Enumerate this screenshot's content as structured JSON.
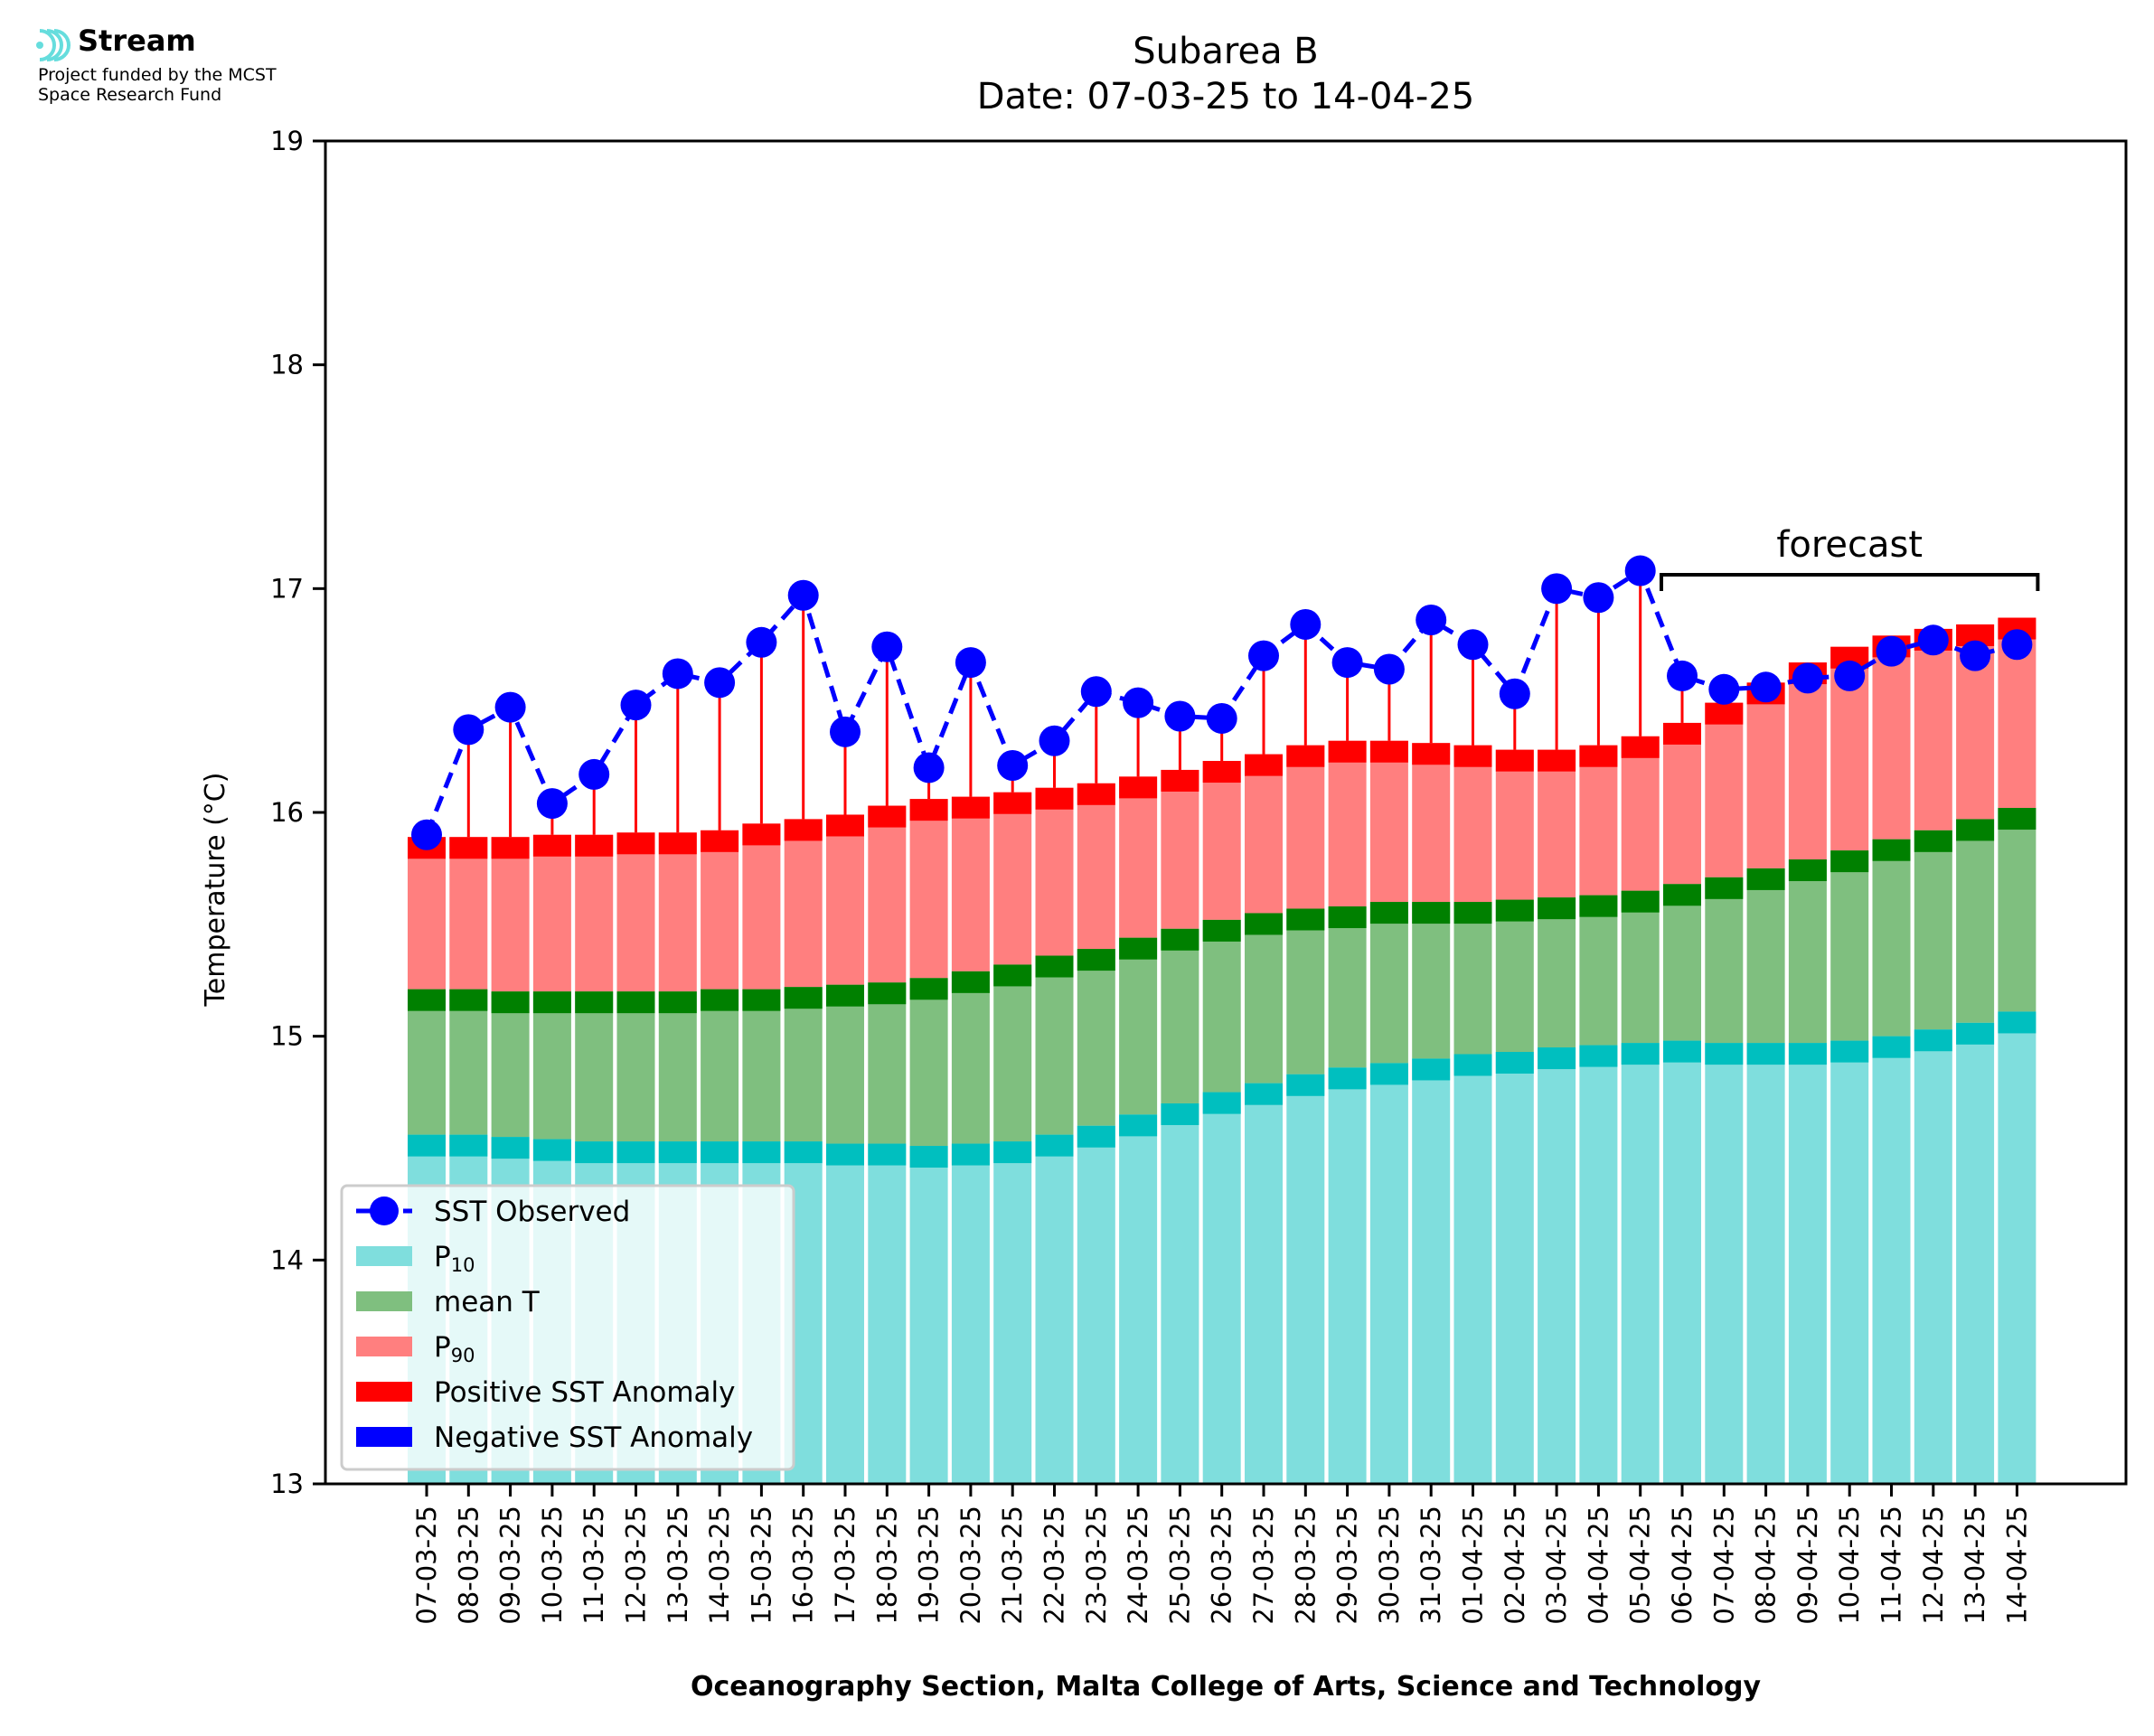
{
  "logo": {
    "name": "Stream",
    "line1": "Project funded by the MCST",
    "line2": "Space Research Fund"
  },
  "chart_data": {
    "type": "bar",
    "title": "Subarea B",
    "subtitle": "Date: 07-03-25 to 14-04-25",
    "xlabel": "Oceanography Section, Malta College of Arts, Science and Technology",
    "ylabel": "Temperature (°C)",
    "ylim": [
      13,
      19
    ],
    "yticks": [
      "13",
      "14",
      "15",
      "16",
      "17",
      "18",
      "19"
    ],
    "annotation": "forecast",
    "forecast_from": "06-04-25",
    "forecast_to": "14-04-25",
    "categories": [
      "07-03-25",
      "08-03-25",
      "09-03-25",
      "10-03-25",
      "11-03-25",
      "12-03-25",
      "13-03-25",
      "14-03-25",
      "15-03-25",
      "16-03-25",
      "17-03-25",
      "18-03-25",
      "19-03-25",
      "20-03-25",
      "21-03-25",
      "22-03-25",
      "23-03-25",
      "24-03-25",
      "25-03-25",
      "26-03-25",
      "27-03-25",
      "28-03-25",
      "29-03-25",
      "30-03-25",
      "31-03-25",
      "01-04-25",
      "02-04-25",
      "03-04-25",
      "04-04-25",
      "05-04-25",
      "06-04-25",
      "07-04-25",
      "08-04-25",
      "09-04-25",
      "10-04-25",
      "11-04-25",
      "12-04-25",
      "13-04-25",
      "14-04-25"
    ],
    "series": [
      {
        "name": "SST Observed",
        "color": "#0000ff",
        "values": [
          15.9,
          16.37,
          16.47,
          16.04,
          16.17,
          16.48,
          16.62,
          16.58,
          16.76,
          16.97,
          16.36,
          16.74,
          16.2,
          16.67,
          16.21,
          16.32,
          16.54,
          16.49,
          16.43,
          16.42,
          16.7,
          16.84,
          16.67,
          16.64,
          16.86,
          16.75,
          16.53,
          17.0,
          16.96,
          17.08,
          16.61,
          16.55,
          16.56,
          16.6,
          16.61,
          16.72,
          16.77,
          16.7,
          16.75
        ]
      },
      {
        "name": "P10",
        "color": "#7fdedd",
        "values": [
          14.56,
          14.56,
          14.55,
          14.54,
          14.53,
          14.53,
          14.53,
          14.53,
          14.53,
          14.53,
          14.52,
          14.52,
          14.51,
          14.52,
          14.53,
          14.56,
          14.6,
          14.65,
          14.7,
          14.75,
          14.79,
          14.83,
          14.86,
          14.88,
          14.9,
          14.92,
          14.93,
          14.95,
          14.96,
          14.97,
          14.98,
          14.97,
          14.97,
          14.97,
          14.98,
          15.0,
          15.03,
          15.06,
          15.11
        ]
      },
      {
        "name": "mean T",
        "color": "#7fbf7f",
        "values": [
          15.21,
          15.21,
          15.2,
          15.2,
          15.2,
          15.2,
          15.2,
          15.21,
          15.21,
          15.22,
          15.23,
          15.24,
          15.26,
          15.29,
          15.32,
          15.36,
          15.39,
          15.44,
          15.48,
          15.52,
          15.55,
          15.57,
          15.58,
          15.6,
          15.6,
          15.6,
          15.61,
          15.62,
          15.63,
          15.65,
          15.68,
          15.71,
          15.75,
          15.79,
          15.83,
          15.88,
          15.92,
          15.97,
          16.02
        ]
      },
      {
        "name": "P90",
        "color": "#ff7f7f",
        "values": [
          15.89,
          15.89,
          15.89,
          15.9,
          15.9,
          15.91,
          15.91,
          15.92,
          15.95,
          15.97,
          15.99,
          16.03,
          16.06,
          16.07,
          16.09,
          16.11,
          16.13,
          16.16,
          16.19,
          16.23,
          16.26,
          16.3,
          16.32,
          16.32,
          16.31,
          16.3,
          16.28,
          16.28,
          16.3,
          16.34,
          16.4,
          16.49,
          16.58,
          16.67,
          16.74,
          16.79,
          16.82,
          16.84,
          16.87
        ]
      }
    ],
    "legend": [
      "SST Observed",
      "P10",
      "mean T",
      "P90",
      "Positive SST Anomaly",
      "Negative SST Anomaly"
    ],
    "legend_position": "lower left",
    "colors": {
      "p10_band": "#00bfbf",
      "mean_band": "#008000",
      "p90_band": "#ff0000",
      "positive_anomaly": "#ff0000",
      "negative_anomaly": "#0000ff",
      "observed": "#0000ff"
    }
  }
}
